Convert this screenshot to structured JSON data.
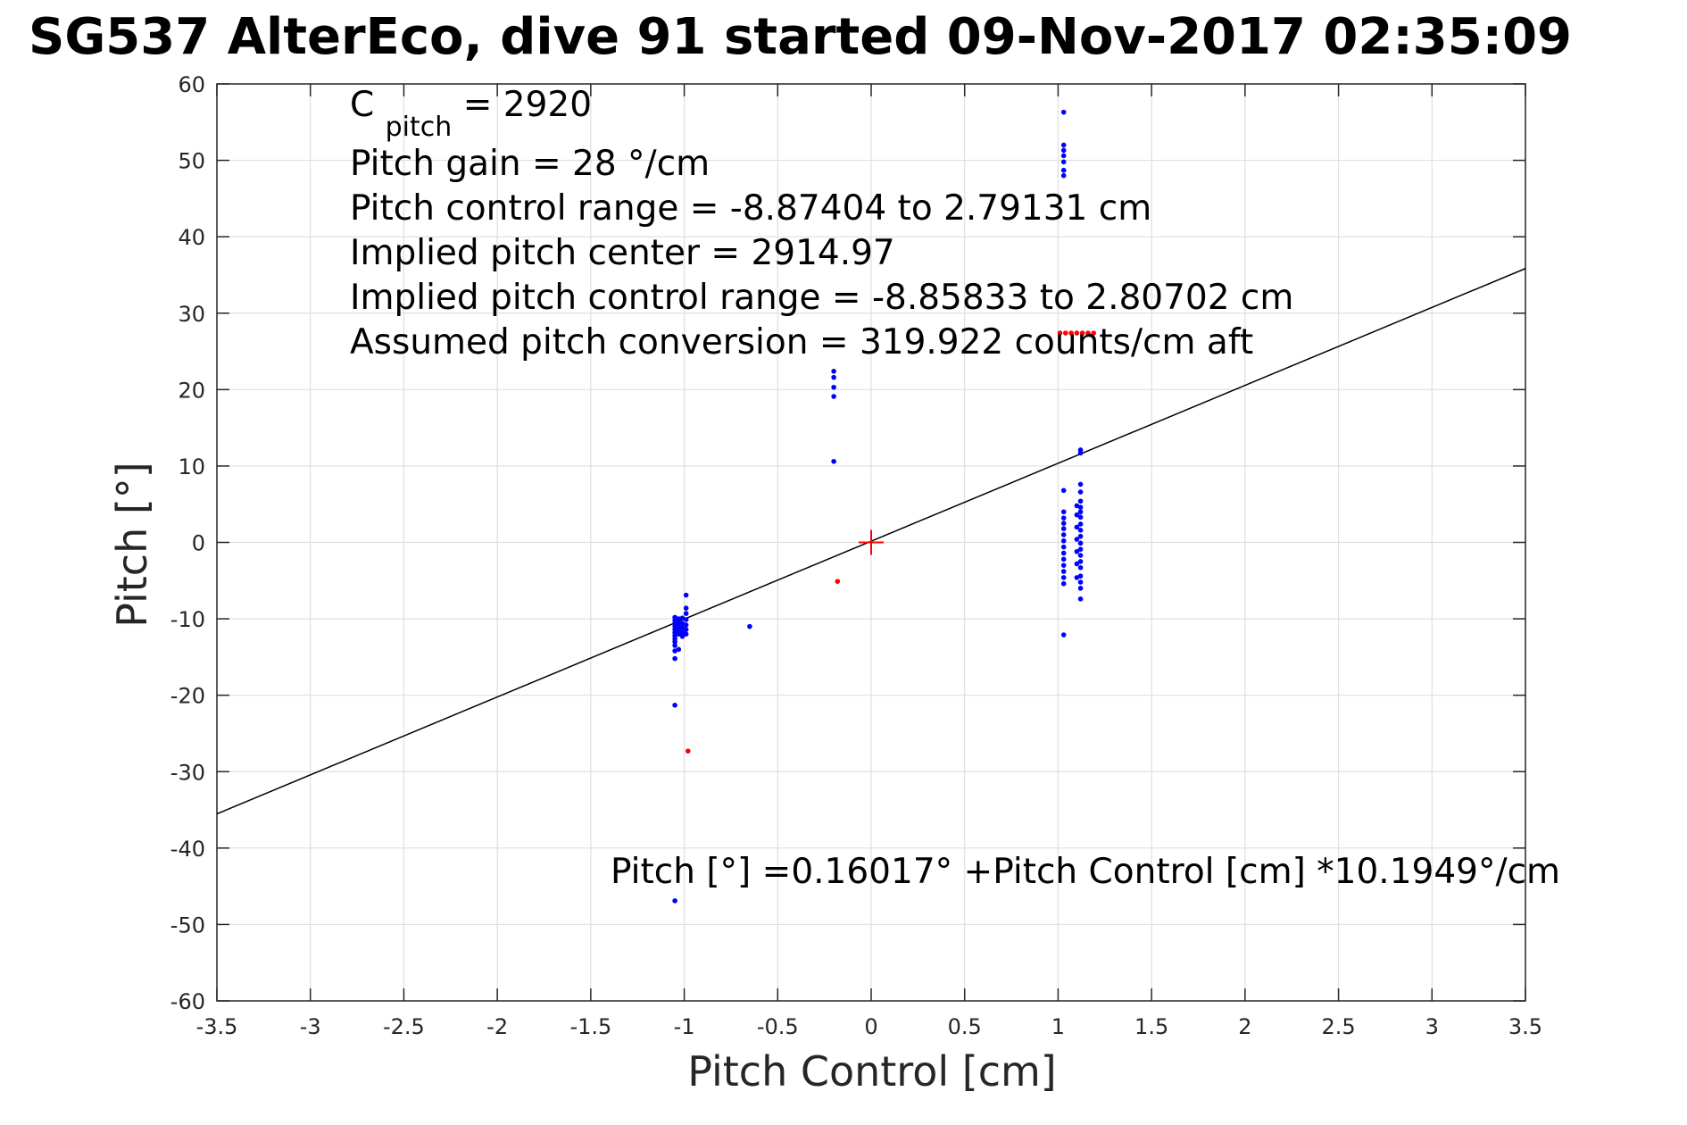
{
  "chart_data": {
    "type": "scatter",
    "title": "SG537 AlterEco, dive 91 started 09-Nov-2017 02:35:09",
    "xlabel": "Pitch Control [cm]",
    "ylabel": "Pitch [°]",
    "xlim": [
      -3.5,
      3.5
    ],
    "ylim": [
      -60,
      60
    ],
    "xticks": [
      -3.5,
      -3,
      -2.5,
      -2,
      -1.5,
      -1,
      -0.5,
      0,
      0.5,
      1,
      1.5,
      2,
      2.5,
      3,
      3.5
    ],
    "xtick_labels": [
      "-3.5",
      "-3",
      "-2.5",
      "-2",
      "-1.5",
      "-1",
      "-0.5",
      "0",
      "0.5",
      "1",
      "1.5",
      "2",
      "2.5",
      "3",
      "3.5"
    ],
    "yticks": [
      -60,
      -50,
      -40,
      -30,
      -20,
      -10,
      0,
      10,
      20,
      30,
      40,
      50,
      60
    ],
    "ytick_labels": [
      "-60",
      "-50",
      "-40",
      "-30",
      "-20",
      "-10",
      "0",
      "10",
      "20",
      "30",
      "40",
      "50",
      "60"
    ],
    "grid": true,
    "annotations": {
      "c_pitch_symbol": "C",
      "c_pitch_subscript": "pitch",
      "c_pitch_value": " = 2920",
      "lines": [
        "Pitch gain = 28 °/cm",
        "Pitch control range = -8.87404 to 2.79131 cm",
        "Implied pitch center = 2914.97",
        "Implied pitch control range = -8.85833 to 2.80702 cm",
        "Assumed pitch conversion = 319.922 counts/cm aft"
      ],
      "fit_equation": "Pitch [°] =0.16017° +Pitch Control [cm] *10.1949°/cm"
    },
    "fit_line": {
      "intercept": 0.16017,
      "slope": 10.1949,
      "color": "#000000"
    },
    "center_marker": {
      "x": 0,
      "y": 0,
      "color": "#ff0000"
    },
    "series": [
      {
        "color": "#0000ff",
        "points": [
          [
            -1.05,
            -9.8
          ],
          [
            -1.05,
            -10.2
          ],
          [
            -1.05,
            -10.6
          ],
          [
            -1.05,
            -11.0
          ],
          [
            -1.05,
            -11.4
          ],
          [
            -1.05,
            -11.8
          ],
          [
            -1.05,
            -12.2
          ],
          [
            -1.05,
            -12.6
          ],
          [
            -1.05,
            -13.0
          ],
          [
            -1.05,
            -13.5
          ],
          [
            -1.05,
            -14.2
          ],
          [
            -1.05,
            -15.2
          ],
          [
            -1.05,
            -21.3
          ],
          [
            -1.05,
            -46.9
          ],
          [
            -1.03,
            -10.0
          ],
          [
            -1.03,
            -10.5
          ],
          [
            -1.03,
            -11.0
          ],
          [
            -1.03,
            -11.5
          ],
          [
            -1.03,
            -12.0
          ],
          [
            -1.03,
            -14.0
          ],
          [
            -1.01,
            -9.9
          ],
          [
            -1.01,
            -10.6
          ],
          [
            -1.01,
            -11.2
          ],
          [
            -1.01,
            -11.8
          ],
          [
            -1.01,
            -12.3
          ],
          [
            -0.99,
            -6.9
          ],
          [
            -0.99,
            -8.6
          ],
          [
            -0.99,
            -9.3
          ],
          [
            -0.99,
            -10.1
          ],
          [
            -0.99,
            -10.8
          ],
          [
            -0.99,
            -11.4
          ],
          [
            -0.99,
            -12.0
          ],
          [
            -0.65,
            -11.0
          ],
          [
            -0.2,
            22.4
          ],
          [
            -0.2,
            21.6
          ],
          [
            -0.2,
            20.3
          ],
          [
            -0.2,
            19.1
          ],
          [
            -0.2,
            10.6
          ],
          [
            1.03,
            56.3
          ],
          [
            1.03,
            52.0
          ],
          [
            1.03,
            51.3
          ],
          [
            1.03,
            50.6
          ],
          [
            1.03,
            49.8
          ],
          [
            1.03,
            48.7
          ],
          [
            1.03,
            48.0
          ],
          [
            1.03,
            6.8
          ],
          [
            1.03,
            4.0
          ],
          [
            1.03,
            3.2
          ],
          [
            1.03,
            2.5
          ],
          [
            1.03,
            1.8
          ],
          [
            1.03,
            1.0
          ],
          [
            1.03,
            0.2
          ],
          [
            1.03,
            -0.6
          ],
          [
            1.03,
            -1.4
          ],
          [
            1.03,
            -2.2
          ],
          [
            1.03,
            -3.0
          ],
          [
            1.03,
            -3.8
          ],
          [
            1.03,
            -4.6
          ],
          [
            1.03,
            -5.4
          ],
          [
            1.03,
            -12.1
          ],
          [
            1.12,
            12.1
          ],
          [
            1.12,
            11.7
          ],
          [
            1.12,
            7.6
          ],
          [
            1.12,
            6.6
          ],
          [
            1.12,
            5.4
          ],
          [
            1.12,
            4.6
          ],
          [
            1.12,
            4.0
          ],
          [
            1.12,
            3.3
          ],
          [
            1.12,
            2.4
          ],
          [
            1.12,
            1.6
          ],
          [
            1.12,
            0.8
          ],
          [
            1.12,
            -0.1
          ],
          [
            1.12,
            -0.9
          ],
          [
            1.12,
            -1.7
          ],
          [
            1.12,
            -2.5
          ],
          [
            1.12,
            -3.3
          ],
          [
            1.12,
            -4.4
          ],
          [
            1.12,
            -5.2
          ],
          [
            1.12,
            -6.0
          ],
          [
            1.12,
            -7.4
          ],
          [
            1.1,
            4.8
          ],
          [
            1.1,
            3.6
          ],
          [
            1.1,
            2.0
          ],
          [
            1.1,
            0.4
          ],
          [
            1.1,
            -1.2
          ],
          [
            1.1,
            -2.8
          ],
          [
            1.1,
            -4.6
          ]
        ]
      },
      {
        "color": "#ff0000",
        "points": [
          [
            -0.98,
            -27.3
          ],
          [
            -0.18,
            -5.1
          ],
          [
            1.01,
            27.4
          ],
          [
            1.04,
            27.4
          ],
          [
            1.07,
            27.4
          ],
          [
            1.1,
            27.4
          ],
          [
            1.13,
            27.4
          ],
          [
            1.16,
            27.4
          ],
          [
            1.19,
            27.4
          ]
        ]
      }
    ]
  }
}
